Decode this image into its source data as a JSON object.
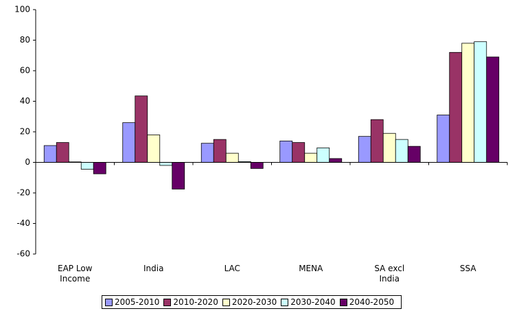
{
  "chart_data": {
    "type": "bar",
    "categories": [
      "EAP Low Income",
      "India",
      "LAC",
      "MENA",
      "SA excl India",
      "SSA"
    ],
    "series": [
      {
        "name": "2005-2010",
        "color": "#9999ff",
        "values": [
          11,
          26,
          12.5,
          14,
          17,
          31
        ]
      },
      {
        "name": "2010-2020",
        "color": "#993366",
        "values": [
          13,
          43.5,
          15,
          13,
          28,
          72
        ]
      },
      {
        "name": "2020-2030",
        "color": "#ffffcc",
        "values": [
          0.3,
          18,
          6,
          6,
          19,
          78
        ]
      },
      {
        "name": "2030-2040",
        "color": "#ccffff",
        "values": [
          -4.5,
          -2,
          0.5,
          9.5,
          15,
          79
        ]
      },
      {
        "name": "2040-2050",
        "color": "#660066",
        "values": [
          -7.5,
          -17.5,
          -4,
          2.5,
          10.5,
          69
        ]
      }
    ],
    "ylim": [
      -60,
      100
    ],
    "yticks": [
      -60,
      -40,
      -20,
      0,
      20,
      40,
      60,
      80,
      100
    ],
    "legend": "bottom"
  }
}
